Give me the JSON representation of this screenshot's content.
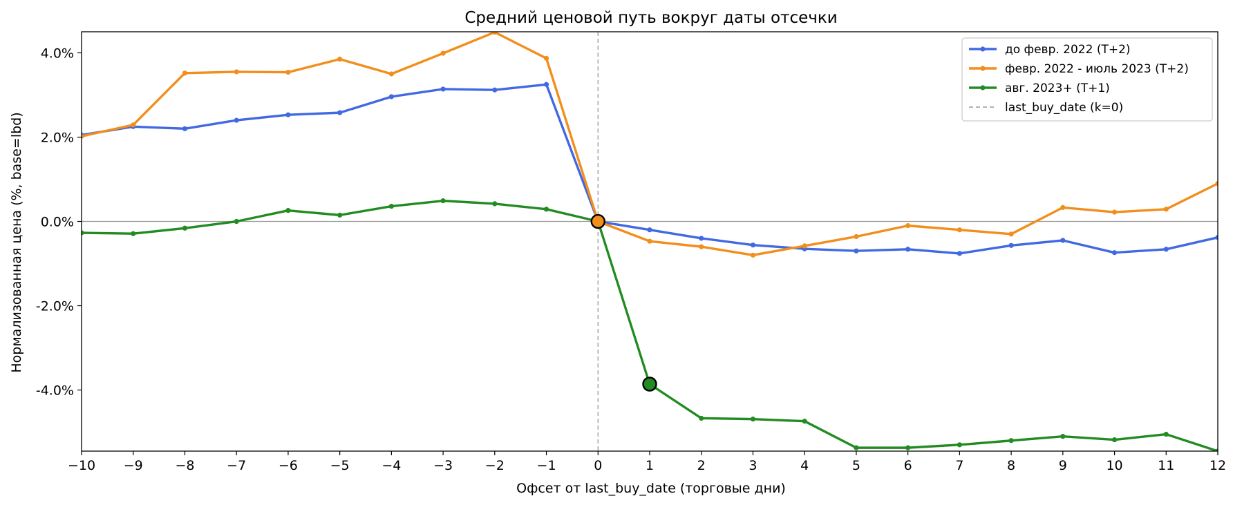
{
  "chart_data": {
    "type": "line",
    "title": "Средний ценовой путь вокруг даты отсечки",
    "xlabel": "Офсет от last_buy_date (торговые дни)",
    "ylabel": "Нормализованная цена (%, base=lbd)",
    "xlim": [
      -10,
      12
    ],
    "ylim": [
      -5.45,
      4.5
    ],
    "x_ticks": [
      -10,
      -9,
      -8,
      -7,
      -6,
      -5,
      -4,
      -3,
      -2,
      -1,
      0,
      1,
      2,
      3,
      4,
      5,
      6,
      7,
      8,
      9,
      10,
      11,
      12
    ],
    "x_tick_labels": [
      "−10",
      "−9",
      "−8",
      "−7",
      "−6",
      "−5",
      "−4",
      "−3",
      "−2",
      "−1",
      "0",
      "1",
      "2",
      "3",
      "4",
      "5",
      "6",
      "7",
      "8",
      "9",
      "10",
      "11",
      "12"
    ],
    "y_ticks": [
      4,
      2,
      0,
      -2,
      -4
    ],
    "y_tick_labels": [
      "4.0%",
      "2.0%",
      "0.0%",
      "-2.0%",
      "-4.0%"
    ],
    "grid": false,
    "legend_position": "top-right",
    "x": [
      -10,
      -9,
      -8,
      -7,
      -6,
      -5,
      -4,
      -3,
      -2,
      -1,
      0,
      1,
      2,
      3,
      4,
      5,
      6,
      7,
      8,
      9,
      10,
      11,
      12
    ],
    "series": [
      {
        "name": "до февр. 2022 (T+2)",
        "color": "#4169e1",
        "values": [
          2.05,
          2.25,
          2.2,
          2.4,
          2.53,
          2.58,
          2.96,
          3.14,
          3.12,
          3.25,
          0.0,
          -0.2,
          -0.4,
          -0.56,
          -0.65,
          -0.7,
          -0.66,
          -0.76,
          -0.57,
          -0.45,
          -0.74,
          -0.66,
          -0.38
        ]
      },
      {
        "name": "февр. 2022 - июль 2023 (T+2)",
        "color": "#f28e1c",
        "values": [
          2.02,
          2.29,
          3.52,
          3.55,
          3.54,
          3.85,
          3.5,
          3.99,
          4.49,
          3.87,
          0.0,
          -0.47,
          -0.6,
          -0.8,
          -0.58,
          -0.36,
          -0.1,
          -0.2,
          -0.3,
          0.33,
          0.22,
          0.29,
          0.9
        ]
      },
      {
        "name": "авг. 2023+ (T+1)",
        "color": "#228b22",
        "values": [
          -0.27,
          -0.29,
          -0.16,
          0.0,
          0.26,
          0.15,
          0.36,
          0.49,
          0.42,
          0.29,
          0.0,
          -3.86,
          -4.67,
          -4.69,
          -4.74,
          -5.37,
          -5.37,
          -5.3,
          -5.2,
          -5.1,
          -5.18,
          -5.05,
          -5.45
        ]
      }
    ],
    "reference_lines": {
      "vertical": {
        "x": 0,
        "label": "last_buy_date (k=0)",
        "color": "#999999",
        "style": "dashed"
      },
      "horizontal": {
        "y": 0,
        "color": "#999999"
      }
    },
    "highlight_points": [
      {
        "x": 0,
        "y": 0.0,
        "color": "#f28e1c"
      },
      {
        "x": 1,
        "y": -3.86,
        "color": "#228b22"
      }
    ]
  }
}
